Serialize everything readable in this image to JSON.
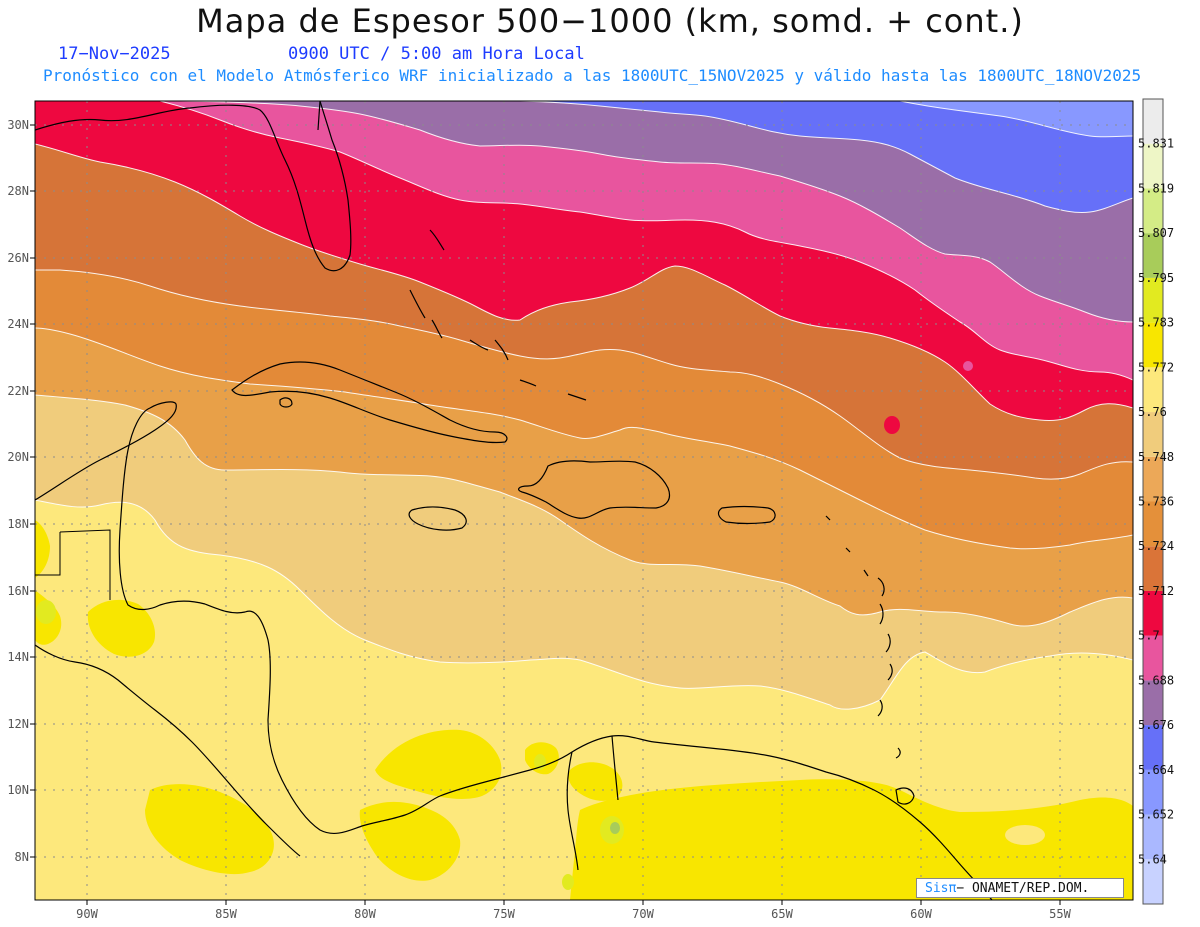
{
  "title": "Mapa de Espesor 500−1000 (km, somd. + cont.)",
  "date": "17−Nov−2025",
  "time": "0900 UTC / 5:00 am Hora Local",
  "forecast_info": "Pronóstico con el Modelo Atmósferico WRF inicializado a las 1800UTC_15NOV2025 y válido hasta las  1800UTC_18NOV2025",
  "credit": {
    "brand": "Sisπ",
    "text": "− ONAMET/REP.DOM."
  },
  "axes": {
    "lat_labels": [
      "30N",
      "28N",
      "26N",
      "24N",
      "22N",
      "20N",
      "18N",
      "16N",
      "14N",
      "12N",
      "10N",
      "8N"
    ],
    "lon_labels": [
      "90W",
      "85W",
      "80W",
      "75W",
      "70W",
      "65W",
      "60W",
      "55W"
    ]
  },
  "colorbar": {
    "levels": [
      "5.64",
      "5.652",
      "5.664",
      "5.676",
      "5.688",
      "5.7",
      "5.712",
      "5.724",
      "5.736",
      "5.748",
      "5.76",
      "5.772",
      "5.783",
      "5.795",
      "5.807",
      "5.819",
      "5.831"
    ],
    "colors": [
      "#c8d2ff",
      "#aab8ff",
      "#8898ff",
      "#6670f8",
      "#9a6ea8",
      "#e8559e",
      "#ee0840",
      "#da7438",
      "#e4903a",
      "#eca858",
      "#f0cc7c",
      "#fde87c",
      "#f8e600",
      "#e2ea20",
      "#a8cc5a",
      "#d4ec86",
      "#eef6c6",
      "#ececec"
    ]
  },
  "legend_colors": {
    "land_outline": "#000000",
    "contour": "#ffffff",
    "grid": "#9a9a9a"
  }
}
